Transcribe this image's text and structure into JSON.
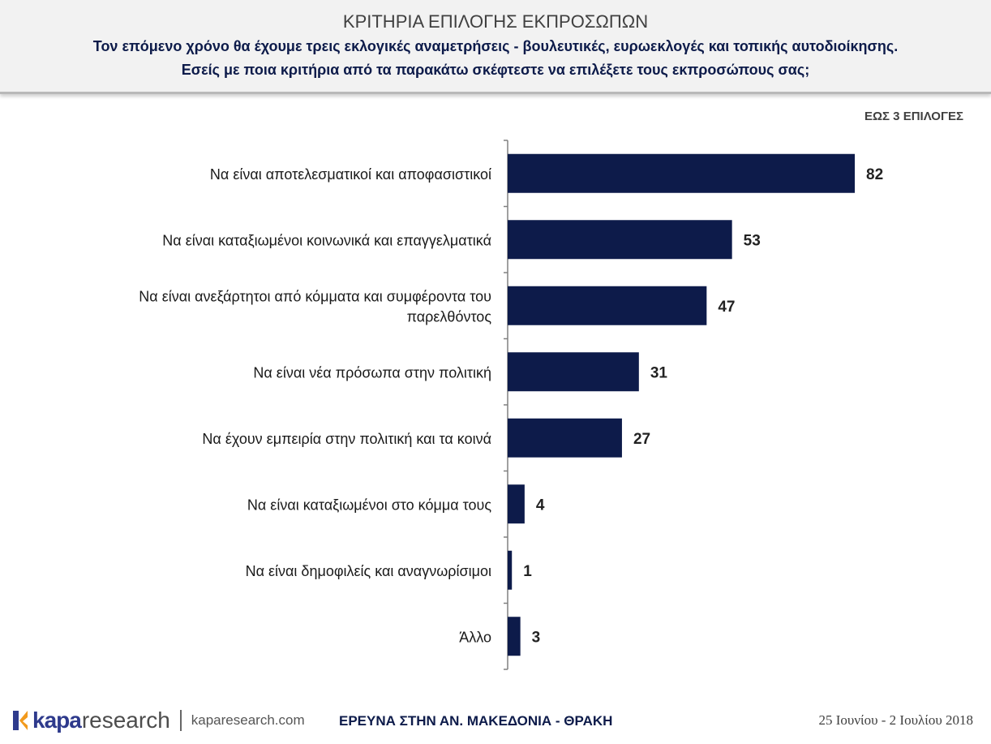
{
  "header": {
    "title": "ΚΡΙΤΗΡΙΑ ΕΠΙΛΟΓΗΣ ΕΚΠΡΟΣΩΠΩΝ",
    "subtitle_line1": "Τον επόμενο χρόνο θα έχουμε τρεις εκλογικές αναμετρήσεις - βουλευτικές, ευρωεκλογές και τοπικής αυτοδιοίκησης.",
    "subtitle_line2": "Εσείς με ποια κριτήρια από τα παρακάτω σκέφτεστε να επιλέξετε τους εκπροσώπους σας;"
  },
  "note": "ΕΩΣ 3 ΕΠΙΛΟΓΕΣ",
  "chart_data": {
    "type": "bar",
    "orientation": "horizontal",
    "categories": [
      [
        "Να είναι αποτελεσματικοί και αποφασιστικοί"
      ],
      [
        "Να είναι καταξιωμένοι κοινωνικά και επαγγελματικά"
      ],
      [
        "Να είναι ανεξάρτητοι από κόμματα και συμφέροντα του",
        "παρελθόντος"
      ],
      [
        "Να είναι νέα πρόσωπα στην πολιτική"
      ],
      [
        "Να έχουν εμπειρία στην πολιτική και τα κοινά"
      ],
      [
        "Να είναι καταξιωμένοι στο κόμμα τους"
      ],
      [
        "Να είναι δημοφιλείς και αναγνωρίσιμοι"
      ],
      [
        "Άλλο"
      ]
    ],
    "values": [
      82,
      53,
      47,
      31,
      27,
      4,
      1,
      3
    ],
    "value_max": 100,
    "bar_color": "#0d1b4a",
    "data_labels": true,
    "grid": false,
    "legend": "none"
  },
  "footer": {
    "brand_kapa": "kapa",
    "brand_research": "research",
    "url": "kaparesearch.com",
    "center": "ΕΡΕΥΝΑ ΣΤΗΝ ΑΝ. ΜΑΚΕΔΟΝΙΑ - ΘΡΑΚΗ",
    "date": "25 Ιουνίου - 2 Ιουλίου 2018"
  }
}
